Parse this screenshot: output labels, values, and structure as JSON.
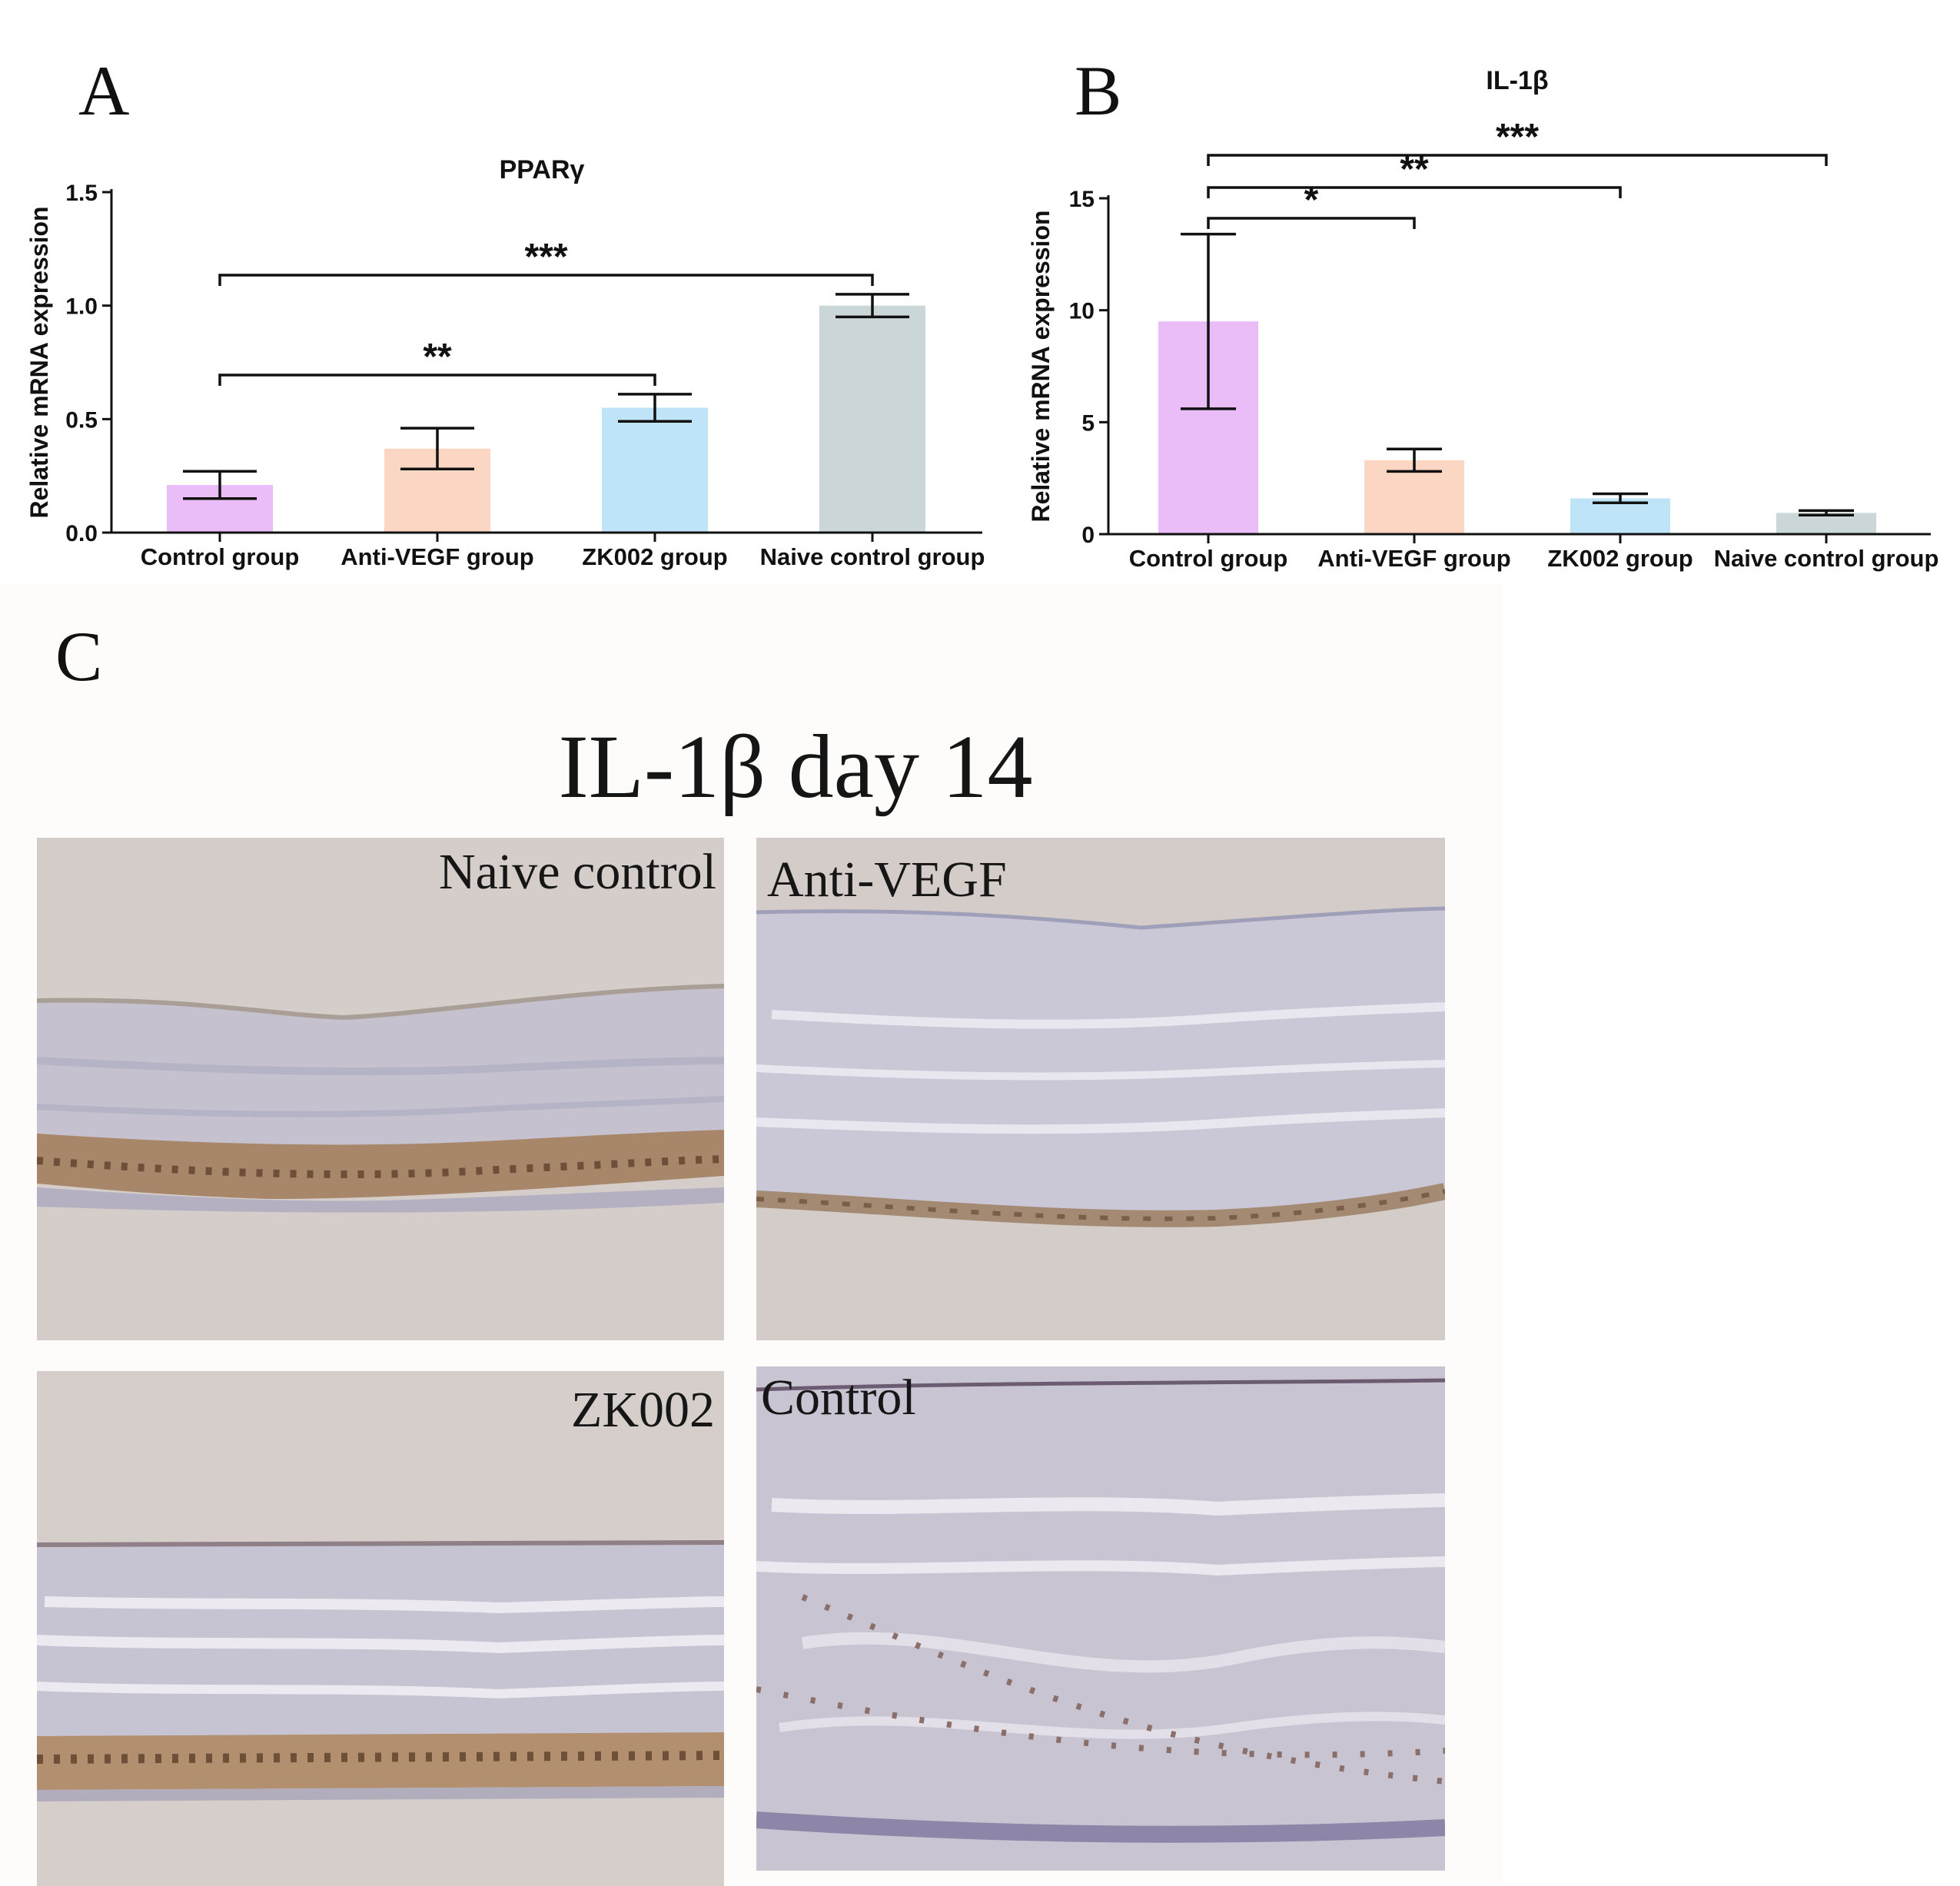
{
  "panel_labels": {
    "a": "A",
    "b": "B",
    "c": "C"
  },
  "panel_c": {
    "title": "IL-1β  day 14",
    "images": {
      "naive": "Naive control",
      "antivegf": "Anti-VEGF",
      "zk002": "ZK002",
      "control": "Control"
    }
  },
  "chart_data": [
    {
      "type": "bar",
      "title": "PPARγ",
      "xlabel": "",
      "ylabel": "Relative mRNA expression",
      "categories": [
        "Control group",
        "Anti-VEGF group",
        "ZK002 group",
        "Naive control group"
      ],
      "values": [
        0.21,
        0.37,
        0.55,
        1.0
      ],
      "errors": [
        0.06,
        0.09,
        0.06,
        0.05
      ],
      "colors": [
        "#ebbdf8",
        "#fbd6c2",
        "#bfe3f7",
        "#cbd6d8"
      ],
      "ylim": [
        0,
        1.5
      ],
      "yticks": [
        "0.0",
        "0.5",
        "1.0",
        "1.5"
      ],
      "ytick_values": [
        0,
        0.5,
        1.0,
        1.5
      ],
      "significance": [
        {
          "from": 0,
          "to": 3,
          "label": "***"
        },
        {
          "from": 0,
          "to": 2,
          "label": "**"
        }
      ]
    },
    {
      "type": "bar",
      "title": "IL-1β",
      "xlabel": "",
      "ylabel": "Relative mRNA expression",
      "categories": [
        "Control group",
        "Anti-VEGF group",
        "ZK002 group",
        "Naive control group"
      ],
      "values": [
        9.5,
        3.3,
        1.6,
        0.95
      ],
      "errors": [
        3.9,
        0.5,
        0.2,
        0.1
      ],
      "colors": [
        "#ebbdf8",
        "#fbd6c2",
        "#bfe3f7",
        "#cbd6d8"
      ],
      "ylim": [
        0,
        15
      ],
      "yticks": [
        "0",
        "5",
        "10",
        "15"
      ],
      "ytick_values": [
        0,
        5,
        10,
        15
      ],
      "significance": [
        {
          "from": 0,
          "to": 1,
          "label": "*"
        },
        {
          "from": 0,
          "to": 2,
          "label": "**"
        },
        {
          "from": 0,
          "to": 3,
          "label": "***"
        }
      ]
    }
  ]
}
